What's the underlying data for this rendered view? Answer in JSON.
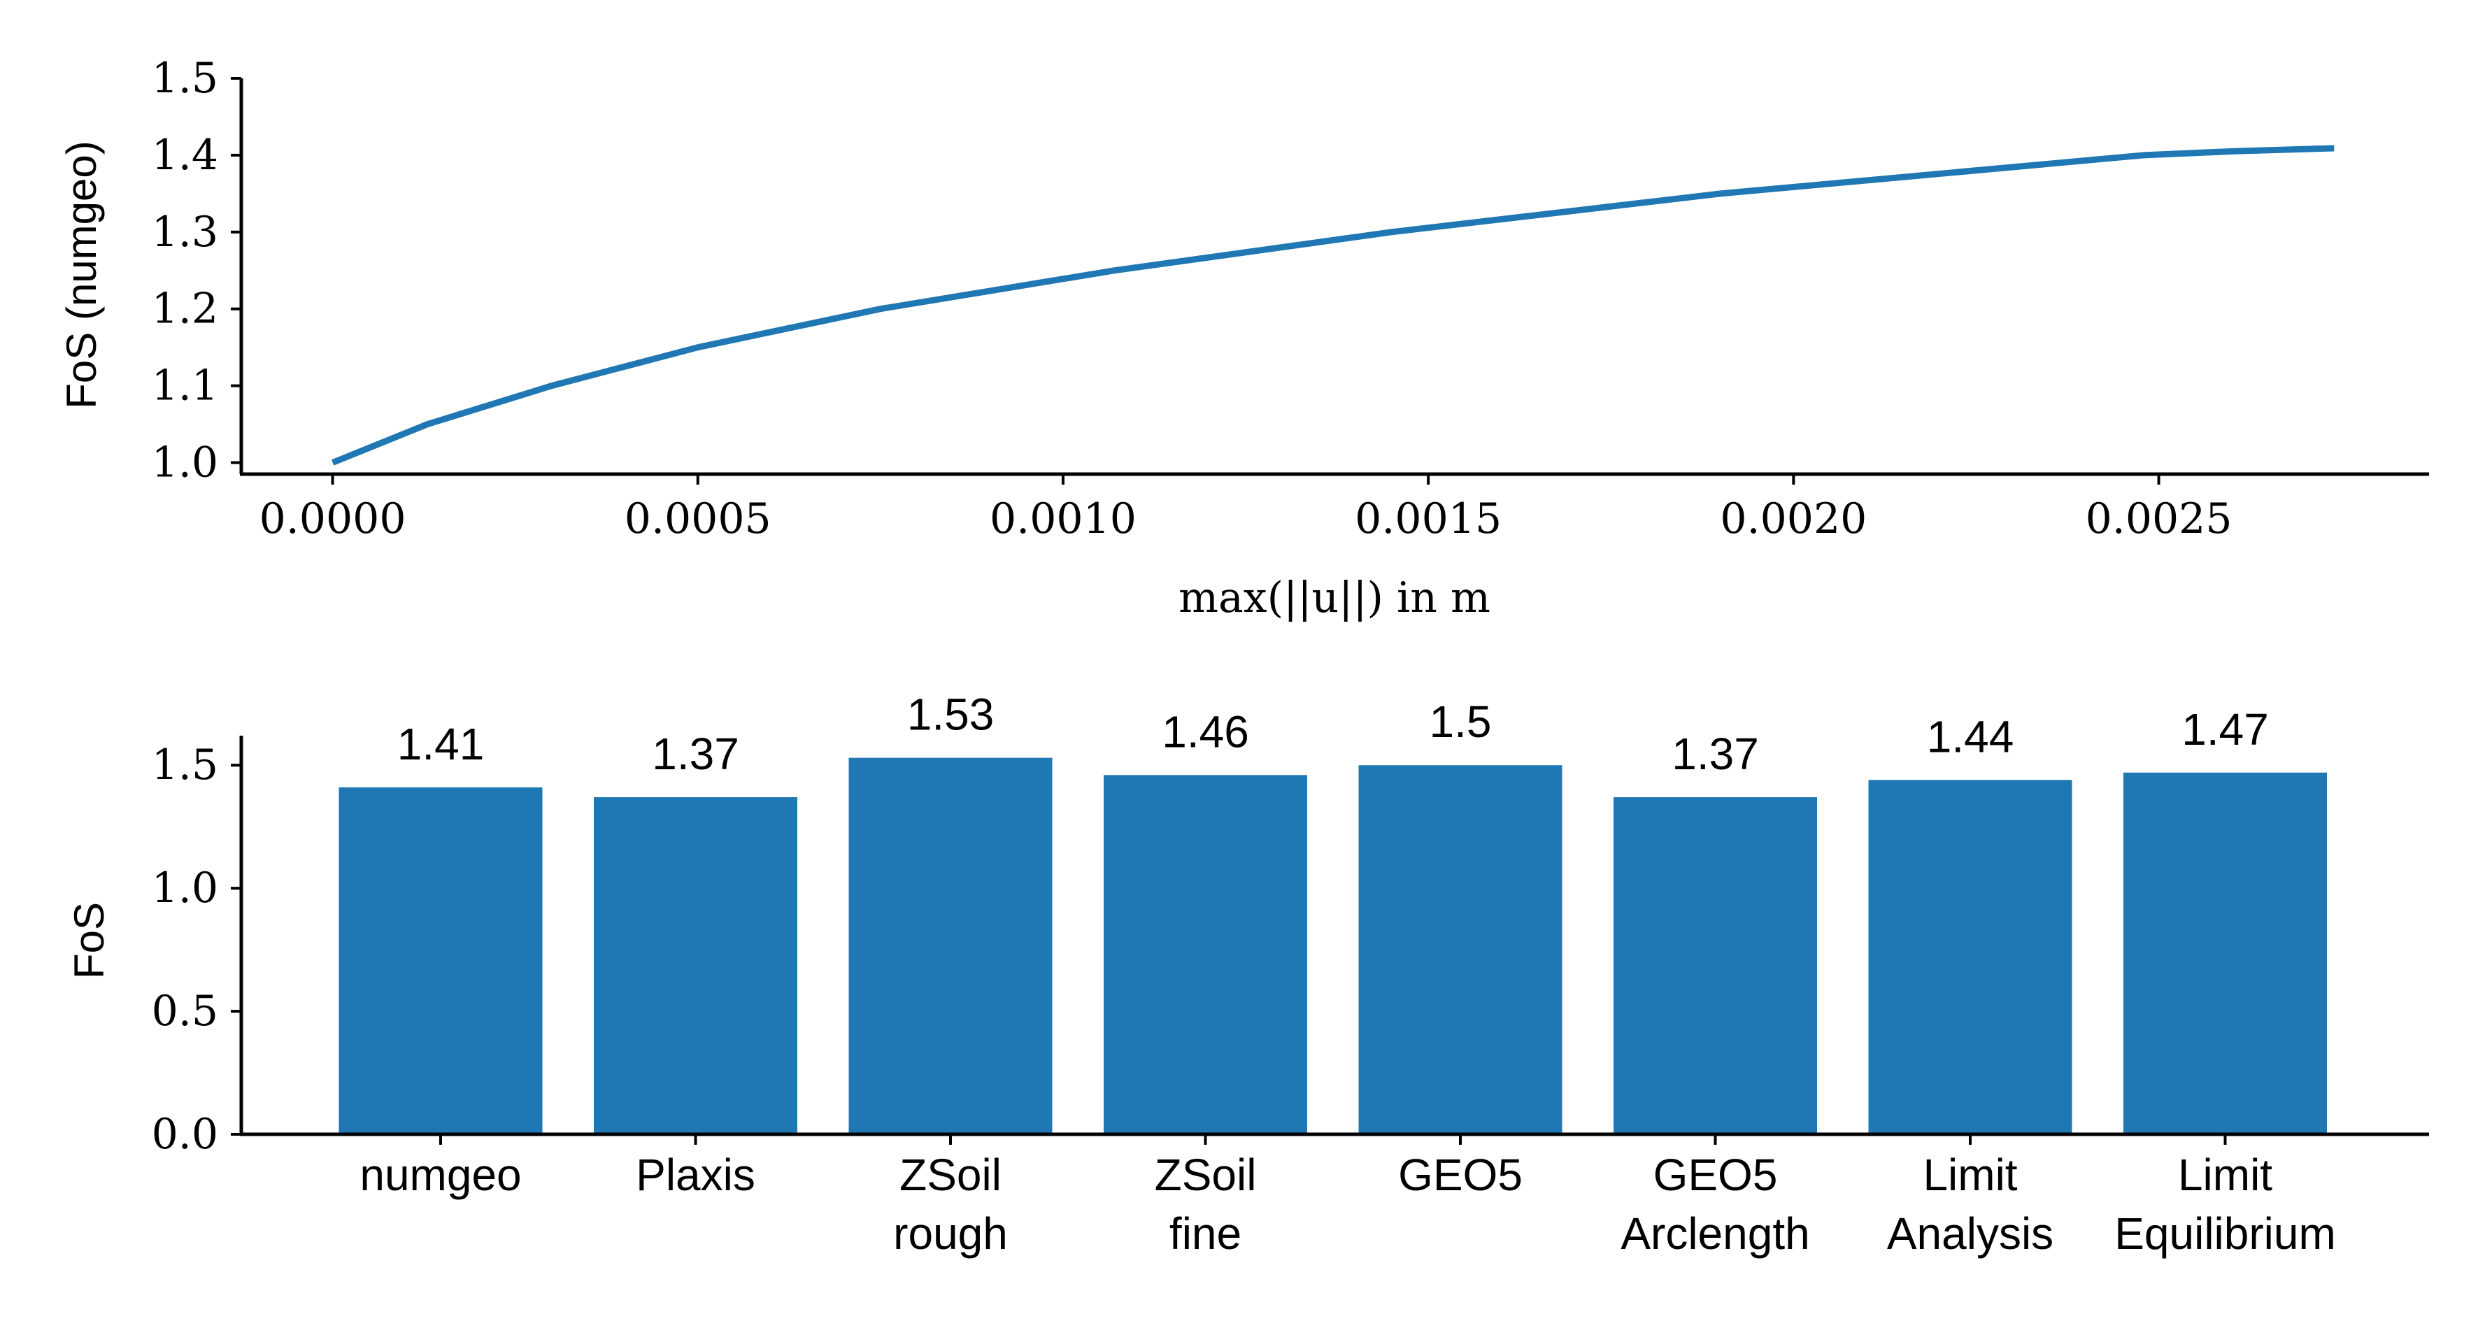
{
  "chart_data": [
    {
      "type": "line",
      "title": "",
      "xlabel": "max(||u||) in m",
      "ylabel": "FoS (numgeo)",
      "xlim": [
        -0.000125,
        0.00287
      ],
      "ylim": [
        0.985,
        1.5
      ],
      "xticks": [
        "0.0000",
        "0.0005",
        "0.0010",
        "0.0015",
        "0.0020",
        "0.0025"
      ],
      "yticks": [
        "1.0",
        "1.1",
        "1.2",
        "1.3",
        "1.4",
        "1.5"
      ],
      "grid": false,
      "color": "#1f77b4",
      "series": [
        {
          "x": [
            0.0,
            0.00013,
            0.0003,
            0.0005,
            0.00075,
            0.00107,
            0.00145,
            0.0019,
            0.00248,
            0.0026,
            0.00274
          ],
          "y": [
            1.0,
            1.05,
            1.1,
            1.15,
            1.2,
            1.25,
            1.3,
            1.35,
            1.4,
            1.405,
            1.409
          ]
        }
      ]
    },
    {
      "type": "bar",
      "title": "",
      "xlabel": "",
      "ylabel": "FoS",
      "ylim": [
        0,
        1.62
      ],
      "yticks": [
        "0.0",
        "0.5",
        "1.0",
        "1.5"
      ],
      "grid": false,
      "color": "#1f77b4",
      "categories": [
        [
          "numgeo"
        ],
        [
          "Plaxis"
        ],
        [
          "ZSoil",
          "rough"
        ],
        [
          "ZSoil",
          "fine"
        ],
        [
          "GEO5"
        ],
        [
          "GEO5",
          "Arclength"
        ],
        [
          "Limit",
          "Analysis"
        ],
        [
          "Limit",
          "Equilibrium"
        ]
      ],
      "values": [
        1.41,
        1.37,
        1.53,
        1.46,
        1.5,
        1.37,
        1.44,
        1.47
      ],
      "value_labels": [
        "1.41",
        "1.37",
        "1.53",
        "1.46",
        "1.5",
        "1.37",
        "1.44",
        "1.47"
      ]
    }
  ]
}
